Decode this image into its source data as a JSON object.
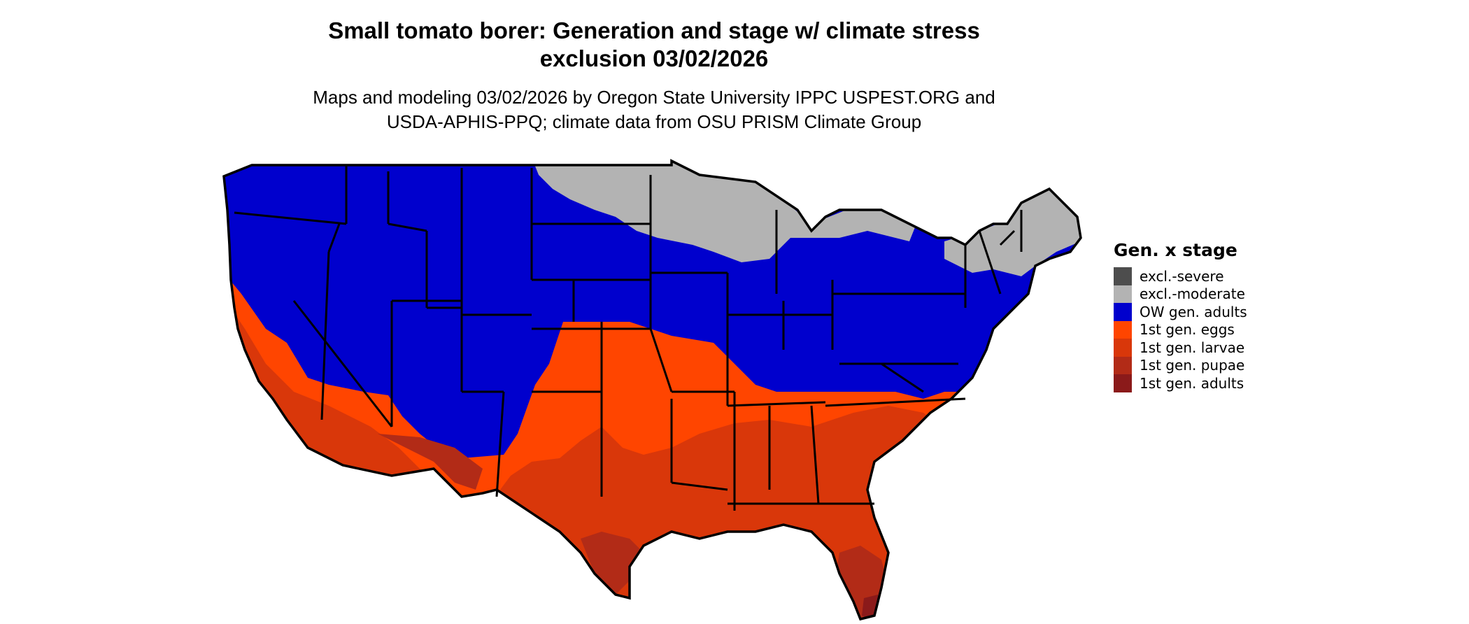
{
  "title": {
    "line1": "Small tomato borer: Generation and stage w/ climate stress",
    "line2": "exclusion 03/02/2026"
  },
  "subtitle": {
    "line1": "Maps and modeling 03/02/2026 by Oregon State University IPPC USPEST.ORG and",
    "line2": "USDA-APHIS-PPQ; climate data from OSU PRISM Climate Group"
  },
  "legend": {
    "title": "Gen. x stage",
    "items": [
      {
        "label": "excl.-severe",
        "color": "#4d4d4d"
      },
      {
        "label": "excl.-moderate",
        "color": "#b3b3b3"
      },
      {
        "label": "OW gen. adults",
        "color": "#0000cd"
      },
      {
        "label": "1st gen. eggs",
        "color": "#ff4500"
      },
      {
        "label": "1st gen. larvae",
        "color": "#d9370a"
      },
      {
        "label": "1st gen. pupae",
        "color": "#b22b17"
      },
      {
        "label": "1st gen. adults",
        "color": "#8b1a1a"
      }
    ]
  },
  "map": {
    "region": "Contiguous United States",
    "state_border_color": "#000000"
  }
}
